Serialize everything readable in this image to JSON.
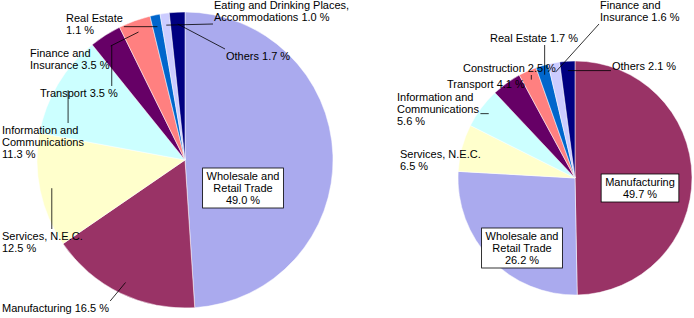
{
  "chart_data": [
    {
      "type": "pie",
      "categories": [
        "Wholesale and Retail Trade",
        "Manufacturing",
        "Services, N.E.C.",
        "Information and Communications",
        "Transport",
        "Finance and Insurance",
        "Real Estate",
        "Eating and Drinking Places, Accommodations",
        "Others"
      ],
      "values": [
        49.0,
        16.5,
        12.5,
        11.3,
        3.5,
        3.5,
        1.1,
        1.0,
        1.7
      ],
      "value_labels": [
        "49.0 %",
        "16.5 %",
        "12.5 %",
        "11.3 %",
        "3.5 %",
        "3.5 %",
        "1.1 %",
        "1.0 %",
        "1.7 %"
      ],
      "colors": [
        "#aaaaee",
        "#993366",
        "#ffffcc",
        "#ccffff",
        "#660066",
        "#ff8080",
        "#0066cc",
        "#ccccff",
        "#000080"
      ],
      "data_labels": true
    },
    {
      "type": "pie",
      "categories": [
        "Manufacturing",
        "Wholesale and Retail Trade",
        "Services, N.E.C.",
        "Information and Communications",
        "Transport",
        "Construction",
        "Real Estate",
        "Finance and Insurance",
        "Others"
      ],
      "values": [
        49.7,
        26.2,
        6.5,
        5.6,
        4.1,
        2.5,
        1.7,
        1.6,
        2.1
      ],
      "value_labels": [
        "49.7 %",
        "26.2 %",
        "6.5 %",
        "5.6 %",
        "4.1 %",
        "2.5 %",
        "1.7 %",
        "1.6 %",
        "2.1 %"
      ],
      "colors": [
        "#993366",
        "#aaaaee",
        "#ffffcc",
        "#ccffff",
        "#660066",
        "#ff8080",
        "#0066cc",
        "#ccccff",
        "#000080"
      ],
      "data_labels": true
    }
  ]
}
